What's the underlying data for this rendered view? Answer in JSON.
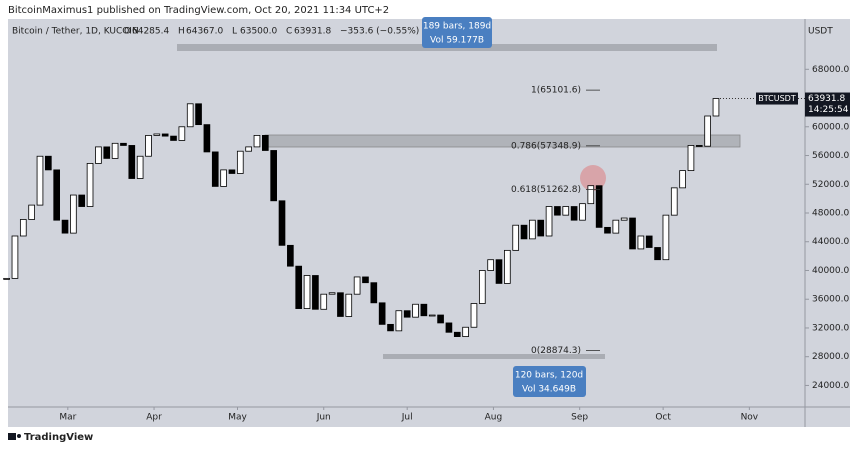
{
  "header": {
    "author_line": "BitcoinMaximus1 published on TradingView.com, Oct 20, 2021 11:34 UTC+2",
    "footer": "TradingView"
  },
  "chart_data": {
    "type": "candlestick",
    "title": "Bitcoin / Tether, 1D, KUCOIN",
    "ohlc_legend": [
      {
        "key": "O",
        "value": "64285.4"
      },
      {
        "key": "H",
        "value": "64367.0"
      },
      {
        "key": "L",
        "value": "63500.0"
      },
      {
        "key": "C",
        "value": "63931.8"
      }
    ],
    "change": "−353.6 (−0.55%)",
    "currency": "USDT",
    "symbol": "BTCUSDT",
    "last_price": {
      "value": 63931.8,
      "label": "63931.8"
    },
    "countdown": "14:25:54",
    "x": [
      0,
      3,
      6,
      9,
      12,
      15,
      18,
      21,
      24,
      27,
      30,
      33,
      36,
      39,
      42,
      45,
      48,
      51,
      54,
      57,
      60,
      63,
      66,
      69,
      72,
      75,
      78,
      81,
      84,
      87,
      90,
      93,
      96,
      99,
      102,
      105,
      108,
      111,
      114,
      117,
      120,
      123,
      126,
      129,
      132,
      135,
      138,
      141,
      144,
      147,
      150,
      153,
      156,
      159,
      162,
      165,
      168,
      171,
      174,
      177,
      180,
      183,
      186,
      189,
      192,
      195,
      198,
      201,
      204,
      207,
      210,
      213,
      216,
      219,
      222,
      225,
      228,
      231,
      234,
      237,
      240,
      243,
      246,
      249,
      252,
      255
    ],
    "series": [
      {
        "name": "BTCUSDT",
        "up_color": "#ffffff",
        "down_color": "#000000",
        "values": [
          38900,
          44800,
          47100,
          49100,
          55900,
          54000,
          47000,
          45200,
          50500,
          48900,
          54900,
          57200,
          55600,
          57700,
          57400,
          52800,
          55900,
          58800,
          59000,
          58700,
          58100,
          60000,
          63200,
          60300,
          56500,
          51700,
          54000,
          53500,
          56600,
          57200,
          58800,
          56700,
          49700,
          43500,
          40600,
          34700,
          39300,
          34600,
          36700,
          36900,
          33600,
          36700,
          39100,
          38300,
          35500,
          32500,
          31600,
          34400,
          33500,
          35300,
          33700,
          33800,
          32700,
          31400,
          30800,
          32100,
          35400,
          40000,
          41500,
          38200,
          42800,
          46300,
          44400,
          47000,
          44800,
          48900,
          47700,
          48900,
          47000,
          49300,
          51800,
          46000,
          45200,
          47000,
          47300,
          43000,
          44800,
          43200,
          41500,
          47700,
          51500,
          53900,
          57400,
          57300,
          61500,
          63931.8
        ]
      }
    ],
    "fib_levels": [
      {
        "value": 65101.6,
        "label": "1(65101.6)"
      },
      {
        "value": 57348.9,
        "label": "0.786(57348.9)"
      },
      {
        "value": 51262.8,
        "label": "0.618(51262.8)"
      },
      {
        "value": 28874.3,
        "label": "0(28874.3)"
      }
    ],
    "measurements": [
      {
        "bars": "189 bars, 189d",
        "volume": "Vol 59.177B"
      },
      {
        "bars": "120 bars, 120d",
        "volume": "Vol 34.649B"
      }
    ],
    "xlim": [
      0.5,
      287
    ],
    "xticks": [
      {
        "value": 22,
        "label": "Mar"
      },
      {
        "value": 53,
        "label": "Apr"
      },
      {
        "value": 83,
        "label": "May"
      },
      {
        "value": 114,
        "label": "Jun"
      },
      {
        "value": 144,
        "label": "Jul"
      },
      {
        "value": 175,
        "label": "Aug"
      },
      {
        "value": 206,
        "label": "Sep"
      },
      {
        "value": 236,
        "label": "Oct"
      },
      {
        "value": 267,
        "label": "Nov"
      }
    ],
    "ylim": [
      21000,
      75000
    ],
    "yticks": [
      {
        "value": 24000,
        "label": "24000.0"
      },
      {
        "value": 28000,
        "label": "28000.0"
      },
      {
        "value": 32000,
        "label": "32000.0"
      },
      {
        "value": 36000,
        "label": "36000.0"
      },
      {
        "value": 40000,
        "label": "40000.0"
      },
      {
        "value": 44000,
        "label": "44000.0"
      },
      {
        "value": 48000,
        "label": "48000.0"
      },
      {
        "value": 52000,
        "label": "52000.0"
      },
      {
        "value": 56000,
        "label": "56000.0"
      },
      {
        "value": 60000,
        "label": "60000.0"
      },
      {
        "value": 68000,
        "label": "68000.0"
      }
    ]
  }
}
